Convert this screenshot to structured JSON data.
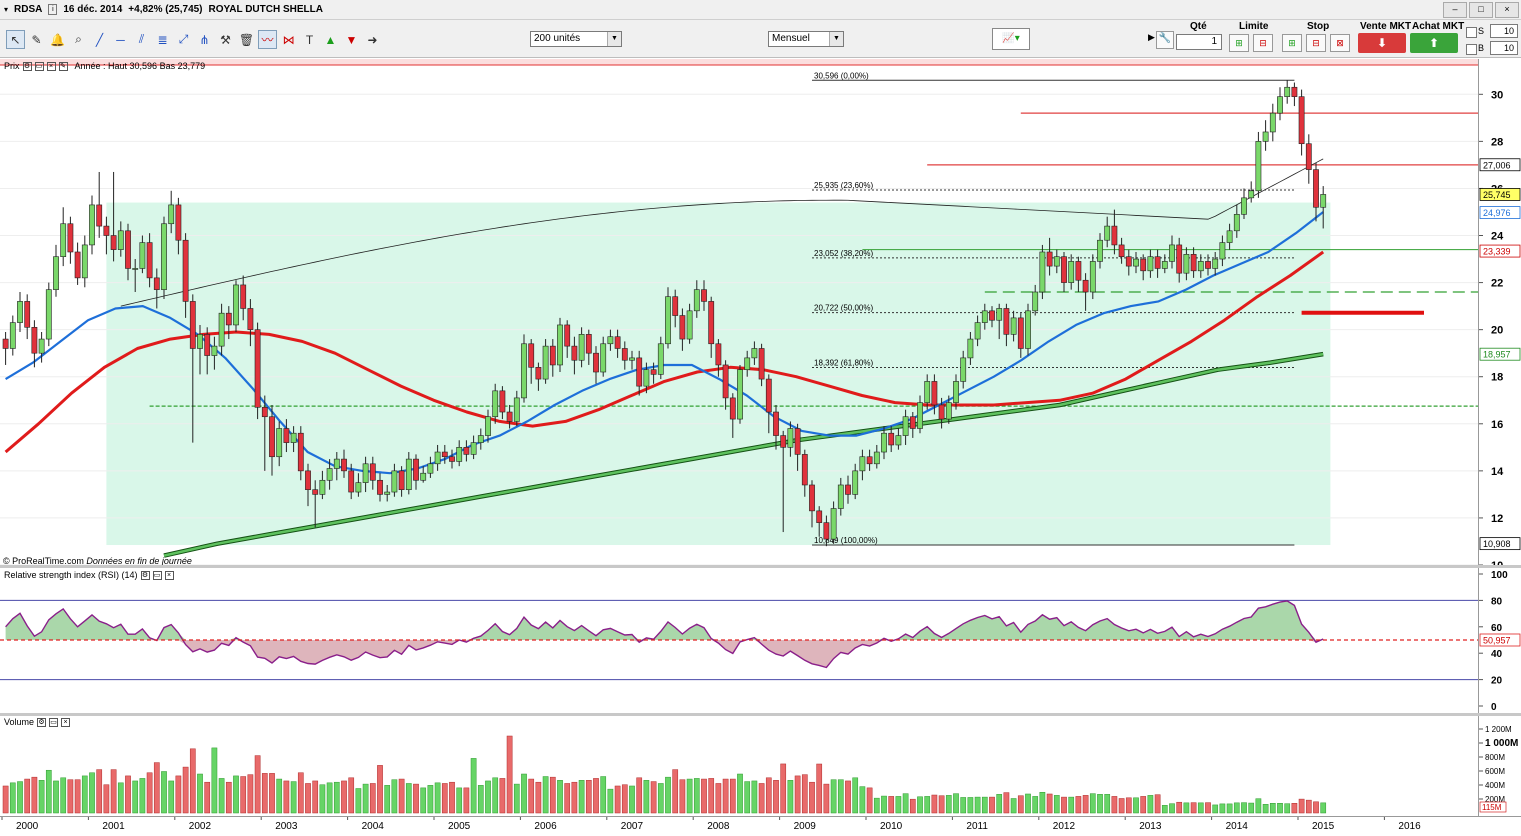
{
  "window": {
    "ticker": "RDSA",
    "date": "16 déc. 2014",
    "change": "+4,82% (25,745)",
    "name": "ROYAL DUTCH SHELLA"
  },
  "toolbar": {
    "units_select": "200 unités",
    "period_select": "Mensuel",
    "icons": [
      "cursor-icon",
      "ruler-icon",
      "bell-icon",
      "zoom-icon",
      "line-tool-icon",
      "horizontal-line-icon",
      "channel-icon",
      "fibonacci-icon",
      "arrows-icon",
      "tools-icon",
      "trash-icon",
      "indicator-icon",
      "pattern-icon",
      "text-icon",
      "up-arrow-icon",
      "down-arrow-icon",
      "forward-icon"
    ]
  },
  "order_panel": {
    "qty_label": "Qté",
    "qty_value": "1",
    "limit_label": "Limite",
    "stop_label": "Stop",
    "sell_label": "Vente MKT",
    "buy_label": "Achat MKT",
    "s_label": "S",
    "s_value": "10",
    "b_label": "B",
    "b_value": "10"
  },
  "price_pane": {
    "label": "Prix",
    "annotation": "Année : Haut 30,596 Bas 23,779",
    "copyright": "© ProRealTime.com",
    "copyright_note": "Données en fin de journée"
  },
  "rsi_pane": {
    "label": "Relative strength index (RSI) (14)"
  },
  "volume_pane": {
    "label": "Volume"
  },
  "chart_data": {
    "type": "candlestick",
    "x_tick_labels": [
      "2000",
      "2001",
      "2002",
      "2003",
      "2004",
      "2005",
      "2006",
      "2007",
      "2008",
      "2009",
      "2010",
      "2011",
      "2012",
      "2013",
      "2014",
      "2015",
      "2016"
    ],
    "price_axis": {
      "ticks": [
        "30",
        "28",
        "26",
        "24",
        "22",
        "20",
        "18",
        "16",
        "14",
        "12",
        "10"
      ],
      "ylim": [
        10,
        31.5
      ]
    },
    "price_markers": [
      {
        "label": "27,006",
        "value": 27.006,
        "color": "#000000",
        "bg": "#ffffff"
      },
      {
        "label": "25,745",
        "value": 25.745,
        "color": "#000000",
        "bg": "#ffff66"
      },
      {
        "label": "24,976",
        "value": 24.976,
        "color": "#1e6fd9",
        "bg": "#ffffff"
      },
      {
        "label": "23,339",
        "value": 23.339,
        "color": "#cc0000",
        "bg": "#ffffff"
      },
      {
        "label": "18,957",
        "value": 18.957,
        "color": "#1f8a1f",
        "bg": "#ffffff"
      },
      {
        "label": "10,908",
        "value": 10.908,
        "color": "#000000",
        "bg": "#ffffff"
      }
    ],
    "fibonacci": [
      {
        "label": "30,596 (0,00%)",
        "value": 30.596
      },
      {
        "label": "25,935 (23,60%)",
        "value": 25.935
      },
      {
        "label": "23,052 (38,20%)",
        "value": 23.052
      },
      {
        "label": "20,722 (50,00%)",
        "value": 20.722
      },
      {
        "label": "18,392 (61,80%)",
        "value": 18.392
      },
      {
        "label": "10,849 (100,00%)",
        "value": 10.849
      }
    ],
    "candles": [
      [
        19.6,
        19.2,
        19.9,
        18.5
      ],
      [
        19.2,
        20.3,
        20.6,
        18.9
      ],
      [
        20.3,
        21.2,
        21.6,
        19.9
      ],
      [
        21.2,
        20.1,
        21.5,
        19.6
      ],
      [
        20.1,
        19.0,
        20.4,
        18.4
      ],
      [
        19.0,
        19.6,
        19.9,
        18.6
      ],
      [
        19.6,
        21.7,
        22.0,
        19.3
      ],
      [
        21.7,
        23.1,
        23.6,
        21.4
      ],
      [
        23.1,
        24.5,
        25.2,
        22.7
      ],
      [
        24.5,
        23.3,
        24.8,
        22.8
      ],
      [
        23.3,
        22.2,
        23.7,
        21.9
      ],
      [
        22.2,
        23.6,
        24.0,
        21.8
      ],
      [
        23.6,
        25.3,
        25.7,
        23.2
      ],
      [
        25.3,
        24.4,
        26.7,
        23.9
      ],
      [
        24.4,
        24.0,
        24.8,
        23.2
      ],
      [
        24.0,
        23.4,
        26.7,
        22.9
      ],
      [
        23.4,
        24.2,
        24.6,
        23.1
      ],
      [
        24.2,
        22.6,
        24.5,
        22.1
      ],
      [
        22.6,
        22.6,
        23.0,
        21.6
      ],
      [
        22.6,
        23.7,
        24.0,
        22.4
      ],
      [
        23.7,
        22.2,
        24.1,
        21.8
      ],
      [
        22.2,
        21.7,
        22.6,
        20.9
      ],
      [
        21.7,
        24.5,
        24.8,
        21.3
      ],
      [
        24.5,
        25.3,
        25.9,
        24.1
      ],
      [
        25.3,
        23.8,
        25.6,
        23.2
      ],
      [
        23.8,
        21.2,
        24.1,
        20.5
      ],
      [
        21.2,
        19.2,
        21.5,
        15.2
      ],
      [
        19.2,
        19.8,
        20.2,
        18.1
      ],
      [
        19.8,
        18.9,
        20.1,
        18.1
      ],
      [
        18.9,
        19.3,
        19.7,
        18.3
      ],
      [
        19.3,
        20.7,
        21.1,
        18.9
      ],
      [
        20.7,
        20.2,
        21.0,
        19.6
      ],
      [
        20.2,
        21.9,
        22.1,
        19.9
      ],
      [
        21.9,
        20.9,
        22.3,
        20.4
      ],
      [
        20.9,
        20.0,
        21.3,
        19.3
      ],
      [
        20.0,
        16.7,
        20.3,
        16.2
      ],
      [
        16.7,
        16.3,
        17.2,
        14.0
      ],
      [
        16.3,
        14.6,
        16.8,
        13.8
      ],
      [
        14.6,
        15.8,
        16.1,
        14.2
      ],
      [
        15.8,
        15.2,
        16.2,
        14.8
      ],
      [
        15.2,
        15.6,
        15.9,
        14.8
      ],
      [
        15.6,
        14.0,
        15.9,
        13.6
      ],
      [
        14.0,
        13.2,
        14.3,
        12.5
      ],
      [
        13.2,
        13.0,
        13.6,
        11.6
      ],
      [
        13.0,
        13.6,
        14.0,
        12.8
      ],
      [
        13.6,
        14.1,
        14.5,
        13.2
      ],
      [
        14.1,
        14.5,
        14.8,
        13.6
      ],
      [
        14.5,
        14.0,
        14.9,
        13.7
      ],
      [
        14.0,
        13.1,
        14.3,
        12.8
      ],
      [
        13.1,
        13.5,
        13.9,
        12.9
      ],
      [
        13.5,
        14.3,
        14.6,
        13.1
      ],
      [
        14.3,
        13.6,
        14.6,
        13.2
      ],
      [
        13.6,
        13.0,
        13.9,
        12.7
      ],
      [
        13.0,
        13.1,
        13.4,
        12.7
      ],
      [
        13.1,
        14.0,
        14.3,
        12.9
      ],
      [
        14.0,
        13.2,
        14.2,
        12.9
      ],
      [
        13.2,
        14.5,
        14.8,
        13.0
      ],
      [
        14.5,
        13.6,
        14.7,
        13.2
      ],
      [
        13.6,
        13.9,
        14.2,
        13.5
      ],
      [
        13.9,
        14.3,
        14.6,
        13.7
      ],
      [
        14.3,
        14.8,
        15.1,
        14.0
      ],
      [
        14.8,
        14.6,
        15.1,
        14.3
      ],
      [
        14.6,
        14.4,
        14.9,
        14.1
      ],
      [
        14.4,
        15.0,
        15.3,
        14.2
      ],
      [
        15.0,
        14.7,
        15.3,
        14.4
      ],
      [
        14.7,
        15.2,
        15.5,
        14.5
      ],
      [
        15.2,
        15.5,
        15.8,
        14.9
      ],
      [
        15.5,
        16.3,
        16.6,
        15.2
      ],
      [
        16.3,
        17.4,
        17.7,
        16.0
      ],
      [
        17.4,
        16.5,
        17.6,
        16.2
      ],
      [
        16.5,
        16.1,
        16.8,
        15.8
      ],
      [
        16.1,
        17.1,
        17.4,
        15.9
      ],
      [
        17.1,
        19.4,
        19.8,
        16.9
      ],
      [
        19.4,
        18.4,
        19.6,
        17.7
      ],
      [
        18.4,
        17.9,
        18.6,
        17.4
      ],
      [
        17.9,
        19.3,
        19.6,
        17.7
      ],
      [
        19.3,
        18.5,
        19.6,
        18.0
      ],
      [
        18.5,
        20.2,
        20.5,
        18.2
      ],
      [
        20.2,
        19.3,
        20.4,
        18.8
      ],
      [
        19.3,
        18.7,
        19.7,
        18.1
      ],
      [
        18.7,
        19.8,
        20.1,
        18.4
      ],
      [
        19.8,
        19.0,
        20.0,
        18.5
      ],
      [
        19.0,
        18.2,
        19.3,
        17.7
      ],
      [
        18.2,
        19.4,
        19.7,
        18.0
      ],
      [
        19.4,
        19.7,
        20.0,
        19.1
      ],
      [
        19.7,
        19.2,
        20.0,
        18.8
      ],
      [
        19.2,
        18.7,
        19.5,
        18.3
      ],
      [
        18.7,
        18.8,
        19.1,
        18.3
      ],
      [
        18.8,
        17.6,
        19.1,
        17.2
      ],
      [
        17.6,
        18.3,
        18.6,
        17.3
      ],
      [
        18.3,
        18.1,
        18.6,
        17.7
      ],
      [
        18.1,
        19.4,
        19.7,
        17.9
      ],
      [
        19.4,
        21.4,
        21.8,
        19.2
      ],
      [
        21.4,
        20.6,
        21.7,
        20.1
      ],
      [
        20.6,
        19.6,
        20.9,
        19.1
      ],
      [
        19.6,
        20.8,
        21.1,
        19.4
      ],
      [
        20.8,
        21.7,
        22.1,
        20.5
      ],
      [
        21.7,
        21.2,
        22.1,
        20.8
      ],
      [
        21.2,
        19.4,
        21.4,
        18.8
      ],
      [
        19.4,
        18.5,
        19.6,
        18.0
      ],
      [
        18.5,
        17.1,
        18.7,
        16.6
      ],
      [
        17.1,
        16.2,
        17.3,
        15.4
      ],
      [
        16.2,
        18.3,
        18.5,
        16.0
      ],
      [
        18.3,
        18.8,
        19.1,
        18.0
      ],
      [
        18.8,
        19.2,
        19.5,
        18.5
      ],
      [
        19.2,
        17.9,
        19.4,
        17.6
      ],
      [
        17.9,
        16.5,
        18.1,
        15.6
      ],
      [
        16.5,
        15.5,
        16.8,
        14.9
      ],
      [
        15.5,
        15.0,
        15.7,
        11.4
      ],
      [
        15.0,
        15.8,
        16.1,
        14.6
      ],
      [
        15.8,
        14.7,
        16.0,
        14.0
      ],
      [
        14.7,
        13.4,
        14.9,
        12.9
      ],
      [
        13.4,
        12.3,
        13.6,
        11.6
      ],
      [
        12.3,
        11.8,
        12.5,
        11.2
      ],
      [
        11.8,
        11.1,
        12.1,
        10.8
      ],
      [
        11.1,
        12.4,
        12.7,
        10.9
      ],
      [
        12.4,
        13.4,
        13.7,
        12.1
      ],
      [
        13.4,
        13.0,
        13.8,
        12.6
      ],
      [
        13.0,
        14.0,
        14.3,
        12.8
      ],
      [
        14.0,
        14.6,
        14.9,
        13.6
      ],
      [
        14.6,
        14.3,
        14.9,
        14.0
      ],
      [
        14.3,
        14.8,
        15.1,
        14.1
      ],
      [
        14.8,
        15.6,
        15.9,
        14.5
      ],
      [
        15.6,
        15.1,
        15.9,
        14.8
      ],
      [
        15.1,
        15.5,
        15.8,
        14.9
      ],
      [
        15.5,
        16.3,
        16.6,
        15.1
      ],
      [
        16.3,
        15.8,
        16.5,
        15.4
      ],
      [
        15.8,
        16.9,
        17.2,
        15.6
      ],
      [
        16.9,
        17.8,
        18.1,
        16.6
      ],
      [
        17.8,
        16.8,
        18.1,
        16.4
      ],
      [
        16.8,
        16.2,
        17.1,
        15.8
      ],
      [
        16.2,
        16.9,
        17.2,
        16.0
      ],
      [
        16.9,
        17.8,
        18.1,
        16.6
      ],
      [
        17.8,
        18.8,
        19.1,
        17.5
      ],
      [
        18.8,
        19.6,
        19.9,
        18.5
      ],
      [
        19.6,
        20.3,
        20.6,
        19.3
      ],
      [
        20.3,
        20.8,
        21.1,
        20.0
      ],
      [
        20.8,
        20.4,
        21.0,
        20.1
      ],
      [
        20.4,
        20.9,
        21.1,
        19.6
      ],
      [
        20.9,
        19.8,
        21.1,
        19.3
      ],
      [
        19.8,
        20.5,
        20.8,
        19.5
      ],
      [
        20.5,
        19.2,
        20.7,
        18.8
      ],
      [
        19.2,
        20.8,
        21.1,
        18.9
      ],
      [
        20.8,
        21.6,
        21.9,
        20.6
      ],
      [
        21.6,
        23.3,
        23.6,
        21.3
      ],
      [
        23.3,
        22.7,
        23.9,
        22.3
      ],
      [
        22.7,
        23.1,
        23.4,
        22.4
      ],
      [
        23.1,
        22.0,
        23.3,
        21.6
      ],
      [
        22.0,
        22.9,
        23.2,
        21.7
      ],
      [
        22.9,
        22.1,
        23.1,
        21.6
      ],
      [
        22.1,
        21.6,
        22.4,
        20.8
      ],
      [
        21.6,
        22.9,
        23.2,
        21.3
      ],
      [
        22.9,
        23.8,
        24.1,
        22.6
      ],
      [
        23.8,
        24.4,
        24.8,
        23.5
      ],
      [
        24.4,
        23.6,
        25.1,
        23.2
      ],
      [
        23.6,
        23.1,
        23.9,
        22.8
      ],
      [
        23.1,
        22.7,
        23.4,
        22.3
      ],
      [
        22.7,
        23.0,
        23.3,
        22.4
      ],
      [
        23.0,
        22.5,
        23.2,
        22.1
      ],
      [
        22.5,
        23.1,
        23.4,
        22.2
      ],
      [
        23.1,
        22.6,
        23.4,
        22.2
      ],
      [
        22.6,
        22.9,
        23.2,
        22.4
      ],
      [
        22.9,
        23.6,
        24.0,
        22.6
      ],
      [
        23.6,
        22.4,
        23.9,
        22.0
      ],
      [
        22.4,
        23.2,
        23.5,
        22.1
      ],
      [
        23.2,
        22.5,
        23.5,
        22.2
      ],
      [
        22.5,
        22.9,
        23.2,
        22.2
      ],
      [
        22.9,
        22.6,
        23.2,
        22.3
      ],
      [
        22.6,
        23.0,
        23.3,
        22.3
      ],
      [
        23.0,
        23.7,
        24.0,
        22.7
      ],
      [
        23.7,
        24.2,
        24.5,
        23.4
      ],
      [
        24.2,
        24.9,
        25.3,
        23.9
      ],
      [
        24.9,
        25.6,
        26.0,
        24.7
      ],
      [
        25.6,
        25.9,
        26.3,
        25.4
      ],
      [
        25.9,
        28.0,
        28.4,
        25.6
      ],
      [
        28.0,
        28.4,
        28.9,
        27.6
      ],
      [
        28.4,
        29.2,
        29.6,
        28.0
      ],
      [
        29.2,
        29.9,
        30.3,
        28.9
      ],
      [
        29.9,
        30.3,
        30.6,
        29.6
      ],
      [
        30.3,
        29.9,
        30.5,
        29.5
      ],
      [
        29.9,
        27.9,
        30.2,
        27.4
      ],
      [
        27.9,
        26.8,
        28.3,
        26.2
      ],
      [
        26.8,
        25.2,
        27.1,
        24.6
      ],
      [
        25.2,
        25.745,
        26.1,
        24.3
      ]
    ],
    "ma_short": [
      17.9,
      18.6,
      19.5,
      20.4,
      20.9,
      21.0,
      20.5,
      19.8,
      18.8,
      17.5,
      16.1,
      14.8,
      14.2,
      14.0,
      13.9,
      14.1,
      14.5,
      15.1,
      15.5,
      16.1,
      16.8,
      17.4,
      17.9,
      18.3,
      18.5,
      18.5,
      17.9,
      17.2,
      16.3,
      15.7,
      15.5,
      15.5,
      15.8,
      16.2,
      16.8,
      17.4,
      18.0,
      18.7,
      19.5,
      20.2,
      20.7,
      21.0,
      21.2,
      21.7,
      22.3,
      22.8,
      23.3,
      24.1,
      25.0
    ],
    "ma_medium": [
      14.8,
      16.0,
      17.3,
      18.4,
      19.2,
      19.6,
      19.8,
      19.9,
      19.8,
      19.5,
      19.0,
      18.3,
      17.6,
      17.0,
      16.5,
      16.1,
      15.9,
      16.1,
      16.6,
      17.2,
      17.8,
      18.2,
      18.4,
      18.3,
      18.0,
      17.6,
      17.2,
      16.9,
      16.8,
      16.8,
      16.8,
      16.9,
      17.0,
      17.3,
      17.9,
      18.7,
      19.5,
      20.4,
      21.4,
      22.3,
      23.3
    ],
    "ma_long": [
      10.4,
      10.9,
      11.3,
      11.7,
      12.1,
      12.5,
      12.9,
      13.3,
      13.7,
      14.1,
      14.5,
      14.9,
      15.3,
      15.6,
      15.9,
      16.2,
      16.5,
      16.8,
      17.3,
      17.8,
      18.3,
      18.6,
      18.96
    ],
    "ma_long_dashed_level": 16.75,
    "rsi": {
      "ticks": [
        "100",
        "80",
        "60",
        "40",
        "20",
        "0"
      ],
      "value_label": "50,957",
      "level_line": 50,
      "overbought": 80,
      "oversold": 20
    },
    "volume": {
      "ticks": [
        "1 200M",
        "1 000M",
        "800M",
        "600M",
        "400M",
        "200M"
      ],
      "unit_note": "115M"
    }
  }
}
